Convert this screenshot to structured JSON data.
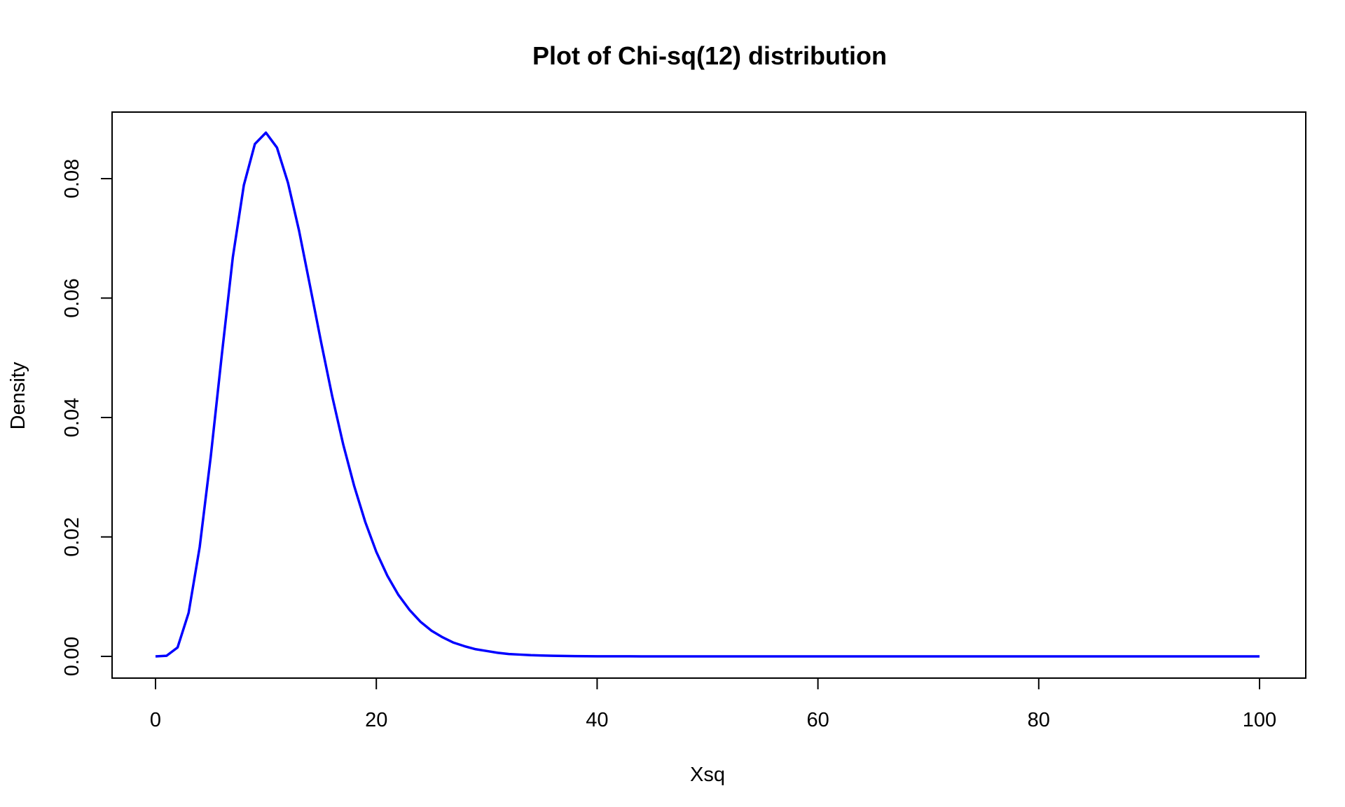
{
  "chart_data": {
    "type": "line",
    "title": "Plot of Chi-sq(12) distribution",
    "xlabel": "Xsq",
    "ylabel": "Density",
    "xlim": [
      0,
      100
    ],
    "ylim": [
      0,
      0.088
    ],
    "x_ticks": [
      "0",
      "20",
      "40",
      "60",
      "80",
      "100"
    ],
    "y_ticks": [
      "0.00",
      "0.02",
      "0.04",
      "0.06",
      "0.08"
    ],
    "grid": false,
    "line_color": "#0000ff",
    "series": [
      {
        "x": [
          0,
          1,
          2,
          3,
          4,
          5,
          6,
          7,
          8,
          9,
          10,
          11,
          12,
          13,
          14,
          15,
          16,
          17,
          18,
          19,
          20,
          21,
          22,
          23,
          24,
          25,
          26,
          27,
          28,
          29,
          30,
          31,
          32,
          33,
          34,
          35,
          36,
          37,
          38,
          39,
          40,
          41,
          42,
          43,
          44,
          45,
          46,
          47,
          48,
          49,
          50,
          51,
          52,
          53,
          54,
          55,
          56,
          57,
          58,
          59,
          60,
          61,
          62,
          63,
          64,
          65,
          66,
          67,
          68,
          69,
          70,
          71,
          72,
          73,
          74,
          75,
          76,
          77,
          78,
          79,
          80,
          81,
          82,
          83,
          84,
          85,
          86,
          87,
          88,
          89,
          90,
          91,
          92,
          93,
          94,
          95,
          96,
          97,
          98,
          99,
          100
        ],
        "values": [
          0,
          0.0001,
          0.0015,
          0.0073,
          0.0183,
          0.0334,
          0.0504,
          0.0668,
          0.0789,
          0.0858,
          0.0877,
          0.0852,
          0.0793,
          0.0713,
          0.062,
          0.0526,
          0.0436,
          0.0355,
          0.0285,
          0.0225,
          0.0175,
          0.0135,
          0.0103,
          0.0078,
          0.0058,
          0.0043,
          0.0032,
          0.0023,
          0.0017,
          0.0012,
          0.0009,
          0.0006,
          0.0004,
          0.0003,
          0.0002,
          0.00015,
          0.0001,
          7e-05,
          5e-05,
          3e-05,
          2e-05,
          1e-05,
          1e-05,
          1e-05,
          0,
          0,
          0,
          0,
          0,
          0,
          0,
          0,
          0,
          0,
          0,
          0,
          0,
          0,
          0,
          0,
          0,
          0,
          0,
          0,
          0,
          0,
          0,
          0,
          0,
          0,
          0,
          0,
          0,
          0,
          0,
          0,
          0,
          0,
          0,
          0,
          0,
          0,
          0,
          0,
          0,
          0,
          0,
          0,
          0,
          0,
          0,
          0,
          0,
          0,
          0,
          0,
          0,
          0,
          0,
          0,
          0
        ]
      }
    ]
  }
}
